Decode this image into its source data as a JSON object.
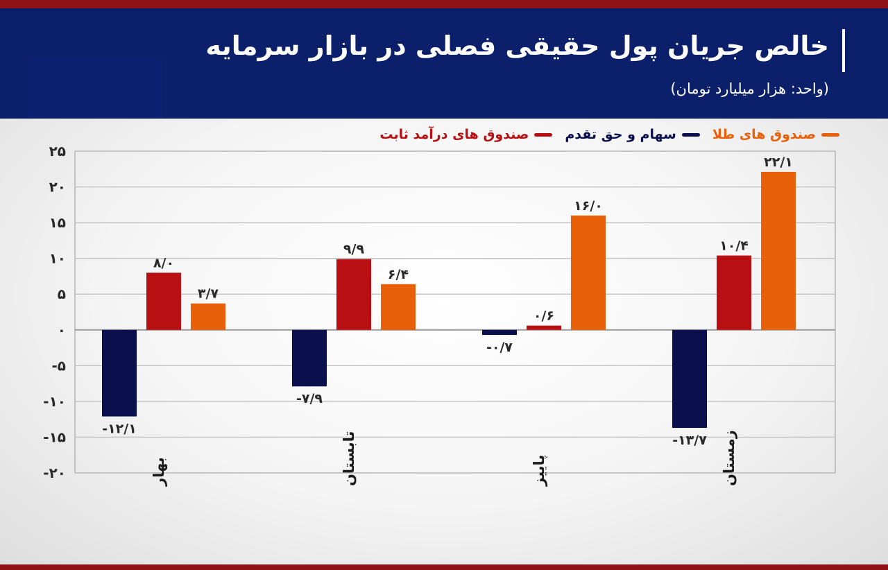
{
  "header": {
    "title": "خالص جریان پول حقیقی فصلی در بازار سرمایه",
    "subtitle": "(واحد: هزار میلیارد تومان)"
  },
  "colors": {
    "header_bg": "#0b1f6b",
    "stripe": "#8e1418",
    "stocks": "#0a0f4d",
    "fixed_income": "#b80f12",
    "gold": "#e8610a"
  },
  "chart_data": {
    "type": "bar",
    "title": "خالص جریان پول حقیقی فصلی در بازار سرمایه",
    "subtitle": "(واحد: هزار میلیارد تومان)",
    "categories": [
      "بهار",
      "تابستان",
      "پاییز",
      "زمستان"
    ],
    "series": [
      {
        "name": "سهام و حق تقدم",
        "values": [
          -12.1,
          -7.9,
          -0.7,
          -13.7
        ],
        "labels": [
          "-۱۲/۱",
          "-۷/۹",
          "-۰/۷",
          "-۱۳/۷"
        ],
        "color": "#0a0f4d"
      },
      {
        "name": "صندوق های درآمد ثابت",
        "values": [
          8.0,
          9.9,
          0.6,
          10.4
        ],
        "labels": [
          "۸/۰",
          "۹/۹",
          "۰/۶",
          "۱۰/۴"
        ],
        "color": "#b80f12"
      },
      {
        "name": "صندوق های طلا",
        "values": [
          3.7,
          6.4,
          16.0,
          22.1
        ],
        "labels": [
          "۳/۷",
          "۶/۴",
          "۱۶/۰",
          "۲۲/۱"
        ],
        "color": "#e8610a"
      }
    ],
    "ylim": [
      -20,
      25
    ],
    "yticks": [
      25,
      20,
      15,
      10,
      5,
      0,
      -5,
      -10,
      -15,
      -20
    ],
    "ytick_labels": [
      "۲۵",
      "۲۰",
      "۱۵",
      "۱۰",
      "۵",
      "۰",
      "-۵",
      "-۱۰",
      "-۱۵",
      "-۲۰"
    ],
    "grid": true,
    "legend_position": "top-right"
  }
}
